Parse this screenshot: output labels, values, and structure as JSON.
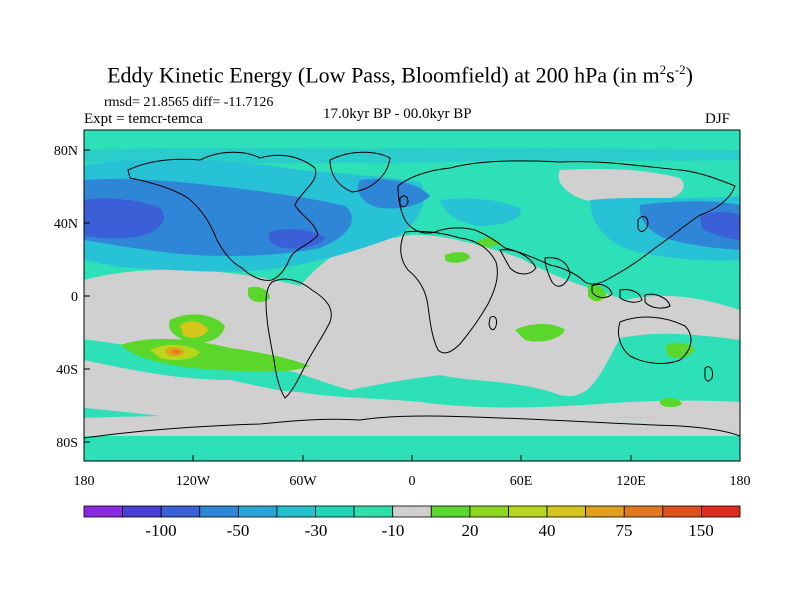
{
  "title": {
    "main": "Eddy Kinetic Energy (Low Pass, Bloomfield) at 200 hPa (in m",
    "sup1": "2",
    "mid": "s",
    "sup2": "-2",
    "end": ")"
  },
  "stats": "rmsd= 21.8565 diff= -11.7126",
  "expt": "Expt = temcr-temca",
  "period": "17.0kyr BP - 00.0kyr BP",
  "season": "DJF",
  "x_ticks": [
    "180",
    "120W",
    "60W",
    "0",
    "60E",
    "120E",
    "180"
  ],
  "y_ticks": [
    "80N",
    "40N",
    "0",
    "40S",
    "80S"
  ],
  "colorbar": {
    "labels": [
      "-100",
      "-50",
      "-30",
      "-10",
      "20",
      "40",
      "75",
      "150"
    ],
    "colors": [
      "#8a2be2",
      "#4b3fd9",
      "#3a5fd6",
      "#2f86d6",
      "#27a6d6",
      "#22c2cc",
      "#1fd6b8",
      "#2ee0a8",
      "#cfcfcf",
      "#5bd62b",
      "#8cd61f",
      "#b8d61a",
      "#d6c619",
      "#e0a21a",
      "#e07a1e",
      "#e0501f",
      "#e02a1f"
    ]
  },
  "legend_colors": {
    "land_outline": "#000000",
    "neutral": "#d0d0d0",
    "teal": "#2ee0b8",
    "cyan": "#27c2d6",
    "blue": "#2f86d6",
    "dark_blue": "#3a5fd6",
    "green": "#5bd62b",
    "yellow": "#d6c619",
    "orange": "#e07a1e"
  }
}
